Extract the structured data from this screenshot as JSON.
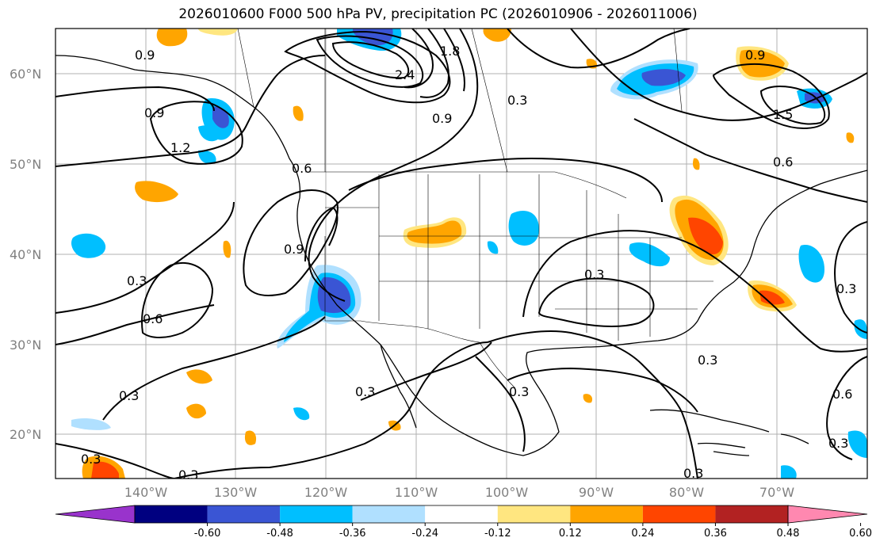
{
  "title": "2026010600 F000 500 hPa PV, precipitation PC (2026010906 - 2026011006)",
  "map": {
    "lat_labels": [
      "60°N",
      "50°N",
      "40°N",
      "30°N",
      "20°N"
    ],
    "lon_labels": [
      "140°W",
      "130°W",
      "120°W",
      "110°W",
      "100°W",
      "90°W",
      "80°W",
      "70°W"
    ],
    "contour_labels": [
      "0.9",
      "1.2",
      "2.4",
      "1.8",
      "0.9",
      "0.3",
      "0.9",
      "1.5",
      "0.9",
      "0.6",
      "0.6",
      "0.9",
      "0.3",
      "0.6",
      "0.3",
      "0.3",
      "0.3",
      "0.3",
      "0.3",
      "0.3",
      "0.3",
      "0.3",
      "0.6",
      "0.3",
      "0.3"
    ]
  },
  "colorbar": {
    "labels": [
      "-0.60",
      "-0.48",
      "-0.36",
      "-0.24",
      "-0.12",
      "0.12",
      "0.24",
      "0.36",
      "0.48",
      "0.60"
    ],
    "colors": [
      "#9933cc",
      "#000080",
      "#3a55d4",
      "#00bfff",
      "#b0e0ff",
      "#ffffff",
      "#ffe680",
      "#ffa500",
      "#ff4500",
      "#b22222",
      "#ff88b0"
    ]
  }
}
